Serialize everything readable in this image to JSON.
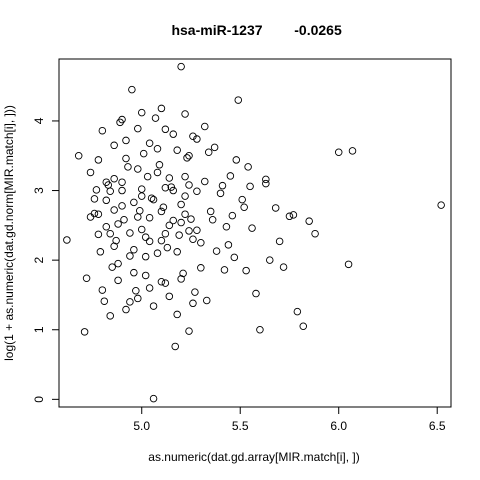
{
  "chart_data": {
    "type": "scatter",
    "title_left": "hsa-miR-1237",
    "title_right": "-0.0265",
    "xlabel": "as.numeric(dat.gd.array[MIR.match[i], ])",
    "ylabel": "log(1 + as.numeric(dat.gd.norm[MIR.match[i], ]))",
    "xlim": [
      4.58,
      6.57
    ],
    "ylim": [
      -0.11,
      4.89
    ],
    "xticks": [
      "5.0",
      "5.5",
      "6.0",
      "6.5"
    ],
    "yticks": [
      "0",
      "1",
      "2",
      "3",
      "4"
    ],
    "grid": false,
    "legend": "none",
    "marker": "open-circle",
    "points": [
      [
        4.62,
        2.29
      ],
      [
        4.68,
        3.5
      ],
      [
        4.71,
        0.97
      ],
      [
        4.72,
        1.74
      ],
      [
        4.74,
        2.62
      ],
      [
        4.76,
        2.67
      ],
      [
        4.77,
        3.01
      ],
      [
        4.78,
        2.37
      ],
      [
        4.78,
        2.66
      ],
      [
        4.79,
        2.12
      ],
      [
        4.8,
        1.57
      ],
      [
        4.81,
        1.41
      ],
      [
        4.82,
        2.86
      ],
      [
        4.83,
        3.08
      ],
      [
        4.84,
        2.38
      ],
      [
        4.85,
        1.9
      ],
      [
        4.86,
        3.65
      ],
      [
        4.86,
        3.17
      ],
      [
        4.87,
        2.28
      ],
      [
        4.88,
        1.71
      ],
      [
        4.89,
        3.98
      ],
      [
        4.9,
        3.12
      ],
      [
        4.91,
        2.58
      ],
      [
        4.92,
        1.29
      ],
      [
        4.93,
        3.34
      ],
      [
        4.94,
        2.06
      ],
      [
        4.95,
        4.45
      ],
      [
        4.96,
        2.83
      ],
      [
        4.97,
        1.56
      ],
      [
        4.98,
        3.89
      ],
      [
        4.99,
        2.71
      ],
      [
        5.0,
        2.44
      ],
      [
        5.01,
        3.53
      ],
      [
        5.02,
        1.78
      ],
      [
        5.03,
        3.2
      ],
      [
        5.04,
        2.27
      ],
      [
        5.05,
        2.89
      ],
      [
        5.06,
        0.01
      ],
      [
        5.07,
        4.04
      ],
      [
        5.08,
        2.1
      ],
      [
        5.09,
        3.37
      ],
      [
        5.1,
        1.69
      ],
      [
        5.11,
        2.76
      ],
      [
        5.12,
        3.88
      ],
      [
        5.13,
        2.18
      ],
      [
        5.14,
        1.48
      ],
      [
        5.15,
        3.05
      ],
      [
        5.16,
        2.57
      ],
      [
        5.17,
        0.76
      ],
      [
        5.18,
        3.58
      ],
      [
        5.19,
        2.36
      ],
      [
        5.2,
        4.78
      ],
      [
        5.21,
        1.81
      ],
      [
        5.22,
        2.92
      ],
      [
        5.23,
        3.47
      ],
      [
        5.24,
        0.98
      ],
      [
        5.25,
        2.59
      ],
      [
        5.26,
        3.78
      ],
      [
        5.27,
        1.54
      ],
      [
        5.28,
        2.99
      ],
      [
        5.3,
        2.25
      ],
      [
        5.32,
        3.13
      ],
      [
        5.33,
        1.42
      ],
      [
        5.35,
        2.7
      ],
      [
        5.37,
        3.62
      ],
      [
        5.38,
        2.13
      ],
      [
        5.4,
        2.96
      ],
      [
        5.42,
        1.86
      ],
      [
        5.43,
        2.48
      ],
      [
        5.45,
        3.21
      ],
      [
        5.47,
        2.04
      ],
      [
        5.49,
        4.3
      ],
      [
        5.51,
        2.87
      ],
      [
        5.53,
        1.85
      ],
      [
        5.55,
        3.06
      ],
      [
        5.58,
        1.52
      ],
      [
        5.6,
        1.0
      ],
      [
        5.63,
        3.1
      ],
      [
        5.65,
        2.0
      ],
      [
        5.68,
        2.75
      ],
      [
        5.7,
        2.27
      ],
      [
        5.72,
        1.9
      ],
      [
        5.75,
        2.63
      ],
      [
        5.79,
        1.26
      ],
      [
        5.82,
        1.05
      ],
      [
        5.85,
        2.56
      ],
      [
        6.0,
        3.55
      ],
      [
        6.05,
        1.94
      ],
      [
        6.07,
        3.57
      ],
      [
        6.52,
        2.79
      ],
      [
        5.41,
        3.07
      ],
      [
        5.46,
        2.64
      ],
      [
        5.54,
        3.34
      ],
      [
        5.63,
        3.16
      ],
      [
        5.77,
        2.65
      ],
      [
        5.88,
        2.38
      ],
      [
        4.84,
        2.99
      ],
      [
        4.88,
        2.52
      ],
      [
        4.92,
        3.46
      ],
      [
        4.96,
        2.15
      ],
      [
        5.0,
        3.02
      ],
      [
        5.04,
        2.61
      ],
      [
        5.08,
        3.26
      ],
      [
        5.12,
        2.38
      ],
      [
        5.16,
        3.0
      ],
      [
        5.2,
        2.54
      ],
      [
        5.24,
        3.08
      ],
      [
        5.28,
        2.43
      ],
      [
        4.82,
        3.12
      ],
      [
        4.9,
        2.78
      ],
      [
        4.98,
        3.31
      ],
      [
        5.06,
        2.87
      ],
      [
        5.14,
        3.18
      ],
      [
        5.22,
        2.66
      ],
      [
        4.86,
        2.2
      ],
      [
        4.94,
        2.39
      ],
      [
        5.02,
        2.05
      ],
      [
        5.1,
        2.28
      ],
      [
        5.18,
        2.12
      ],
      [
        5.26,
        2.3
      ],
      [
        4.8,
        3.86
      ],
      [
        4.92,
        3.72
      ],
      [
        5.04,
        3.68
      ],
      [
        5.16,
        3.81
      ],
      [
        5.28,
        3.74
      ],
      [
        4.88,
        1.95
      ],
      [
        4.96,
        1.82
      ],
      [
        5.04,
        1.6
      ],
      [
        5.12,
        1.67
      ],
      [
        5.2,
        1.73
      ],
      [
        5.3,
        1.89
      ],
      [
        4.74,
        3.26
      ],
      [
        4.76,
        2.88
      ],
      [
        4.78,
        3.44
      ],
      [
        5.34,
        3.55
      ],
      [
        5.36,
        2.58
      ],
      [
        5.44,
        2.22
      ],
      [
        5.48,
        3.44
      ],
      [
        5.52,
        2.76
      ],
      [
        5.56,
        2.46
      ],
      [
        4.9,
        4.02
      ],
      [
        5.0,
        4.12
      ],
      [
        5.1,
        4.18
      ],
      [
        5.22,
        4.1
      ],
      [
        5.32,
        3.92
      ],
      [
        4.94,
        1.4
      ],
      [
        5.06,
        1.34
      ],
      [
        5.18,
        1.22
      ],
      [
        5.26,
        1.38
      ],
      [
        4.84,
        1.2
      ],
      [
        4.98,
        1.45
      ],
      [
        5.08,
        3.6
      ],
      [
        5.24,
        3.5
      ],
      [
        4.86,
        2.72
      ],
      [
        4.98,
        2.62
      ],
      [
        5.1,
        2.7
      ],
      [
        5.2,
        2.8
      ],
      [
        4.82,
        2.48
      ],
      [
        5.02,
        2.33
      ],
      [
        5.14,
        2.5
      ],
      [
        5.24,
        2.42
      ],
      [
        4.9,
        3.0
      ],
      [
        5.0,
        2.92
      ],
      [
        5.12,
        3.04
      ],
      [
        5.22,
        3.2
      ]
    ]
  }
}
